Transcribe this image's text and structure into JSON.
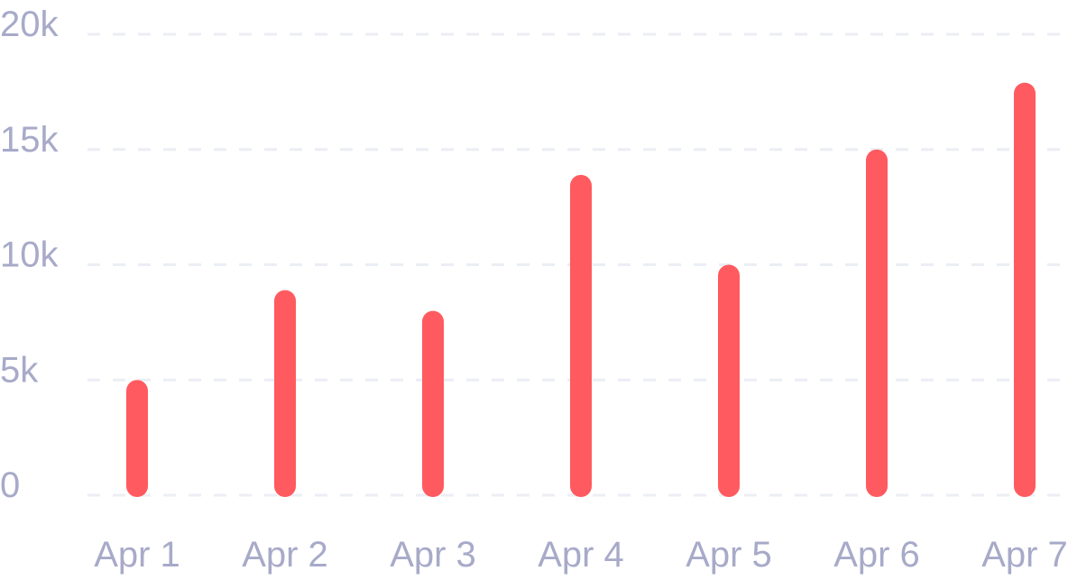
{
  "chart_data": {
    "type": "bar",
    "categories": [
      "Apr 1",
      "Apr 2",
      "Apr 3",
      "Apr 4",
      "Apr 5",
      "Apr 6",
      "Apr 7"
    ],
    "values": [
      5000,
      8900,
      8000,
      13900,
      10000,
      15000,
      17900
    ],
    "ylim": [
      0,
      20000
    ],
    "y_ticks": [
      0,
      5000,
      10000,
      15000,
      20000
    ],
    "y_tick_labels": [
      "0",
      "5k",
      "10k",
      "15k",
      "20k"
    ],
    "grid": true,
    "bar_color": "#ff5a5f",
    "grid_color": "#eceef5",
    "label_color": "#a7aac8"
  }
}
